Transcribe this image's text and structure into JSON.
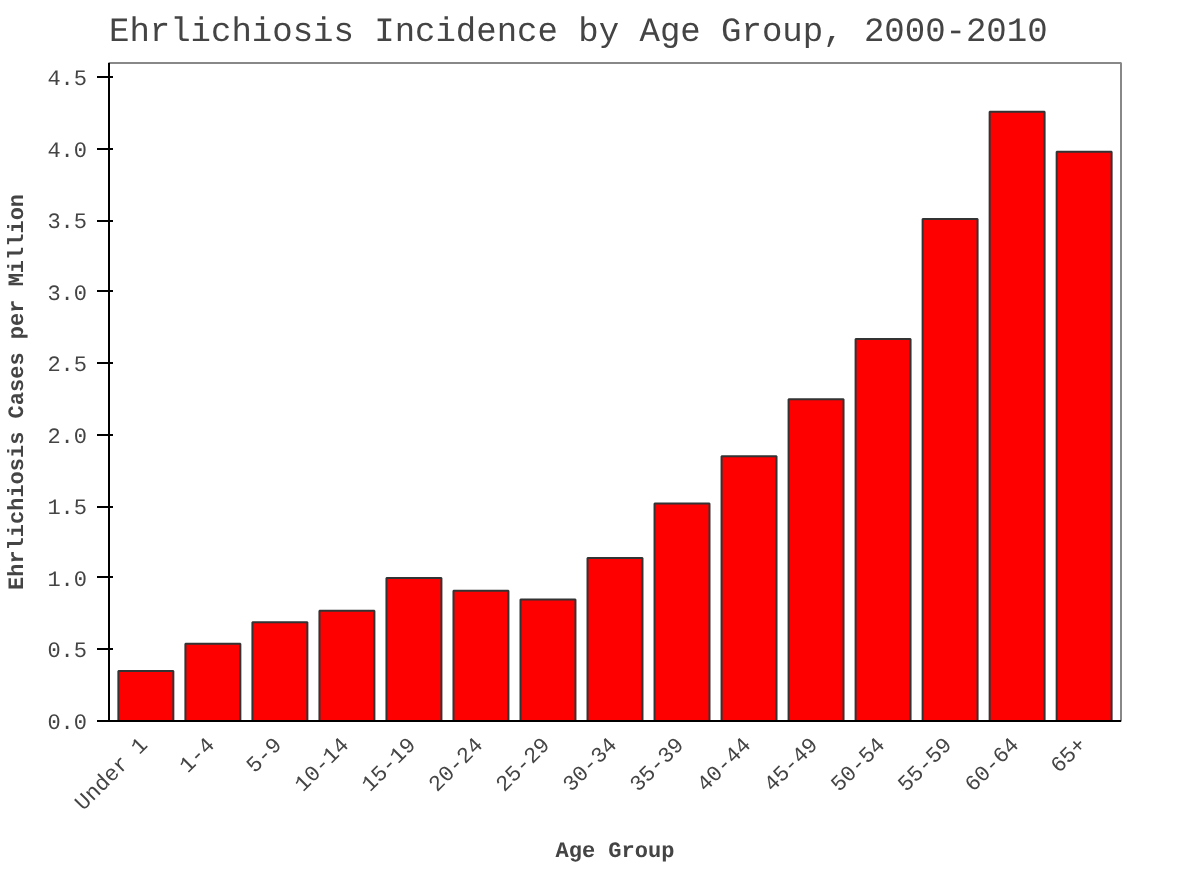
{
  "chart_data": {
    "type": "bar",
    "title": "Ehrlichiosis Incidence by Age Group, 2000-2010",
    "xlabel": "Age Group",
    "ylabel": "Ehrlichiosis Cases per Million",
    "categories": [
      "Under 1",
      "1-4",
      "5-9",
      "10-14",
      "15-19",
      "20-24",
      "25-29",
      "30-34",
      "35-39",
      "40-44",
      "45-49",
      "50-54",
      "55-59",
      "60-64",
      "65+"
    ],
    "values": [
      0.35,
      0.54,
      0.69,
      0.77,
      1.0,
      0.91,
      0.85,
      1.14,
      1.52,
      1.85,
      2.25,
      2.67,
      3.51,
      4.26,
      3.98
    ],
    "color": "#ff0000",
    "ylim": [
      0,
      4.6
    ],
    "yticks": [
      {
        "value": 0,
        "label": "0.0"
      },
      {
        "value": 0.5,
        "label": "0.5"
      },
      {
        "value": 1,
        "label": "1.0"
      },
      {
        "value": 1.5,
        "label": "1.5"
      },
      {
        "value": 2,
        "label": "2.0"
      },
      {
        "value": 2.5,
        "label": "2.5"
      },
      {
        "value": 3,
        "label": "3.0"
      },
      {
        "value": 3.5,
        "label": "3.5"
      },
      {
        "value": 4,
        "label": "4.0"
      },
      {
        "value": 4.5,
        "label": "4.5"
      }
    ],
    "grid": false
  }
}
